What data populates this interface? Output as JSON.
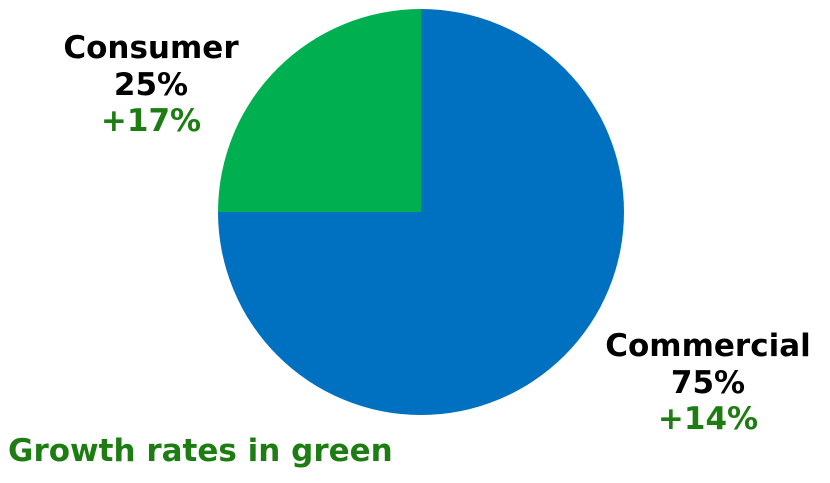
{
  "chart_data": {
    "type": "pie",
    "title": "",
    "start_angle_deg": 90,
    "slices": [
      {
        "label": "Consumer",
        "value": 25,
        "value_text": "25%",
        "growth": "+17%",
        "color": "#00B050"
      },
      {
        "label": "Commercial",
        "value": 75,
        "value_text": "75%",
        "growth": "+14%",
        "color": "#0070C0"
      }
    ],
    "growth_color": "#1E7D12",
    "annotation": "Growth rates in green"
  }
}
